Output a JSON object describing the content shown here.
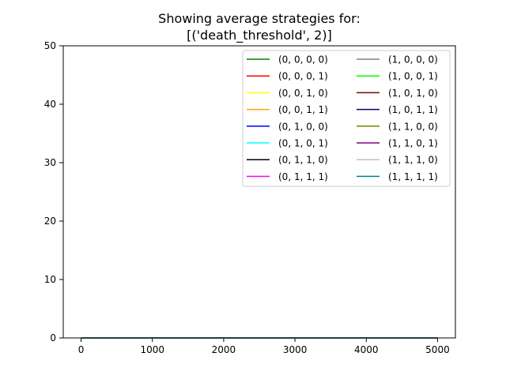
{
  "chart_data": {
    "type": "line",
    "title_lines": [
      "Showing average strategies for:",
      "[('death_threshold', 2)]"
    ],
    "xlabel": "",
    "ylabel": "",
    "xlim": [
      -250,
      5250
    ],
    "ylim": [
      0,
      50
    ],
    "xticks": [
      0,
      1000,
      2000,
      3000,
      4000,
      5000
    ],
    "yticks": [
      0,
      10,
      20,
      30,
      40,
      50
    ],
    "grid": false,
    "legend_placement": "upper-right",
    "legend_columns": 2,
    "x": [
      0,
      5000
    ],
    "series": [
      {
        "name": "(0, 0, 0, 0)",
        "color": "#008000",
        "values": [
          0,
          0
        ]
      },
      {
        "name": "(0, 0, 0, 1)",
        "color": "#ff0000",
        "values": [
          0,
          0
        ]
      },
      {
        "name": "(0, 0, 1, 0)",
        "color": "#ffff00",
        "values": [
          0,
          0
        ]
      },
      {
        "name": "(0, 0, 1, 1)",
        "color": "#ffa500",
        "values": [
          0,
          0
        ]
      },
      {
        "name": "(0, 1, 0, 0)",
        "color": "#0000ff",
        "values": [
          0,
          0
        ]
      },
      {
        "name": "(0, 1, 0, 1)",
        "color": "#00ffff",
        "values": [
          0,
          0
        ]
      },
      {
        "name": "(0, 1, 1, 0)",
        "color": "#000000",
        "values": [
          0,
          0
        ]
      },
      {
        "name": "(0, 1, 1, 1)",
        "color": "#ff00ff",
        "values": [
          0,
          0
        ]
      },
      {
        "name": "(1, 0, 0, 0)",
        "color": "#808080",
        "values": [
          0,
          0
        ]
      },
      {
        "name": "(1, 0, 0, 1)",
        "color": "#00ff00",
        "values": [
          0,
          0
        ]
      },
      {
        "name": "(1, 0, 1, 0)",
        "color": "#800000",
        "values": [
          0,
          0
        ]
      },
      {
        "name": "(1, 0, 1, 1)",
        "color": "#000080",
        "values": [
          0,
          0
        ]
      },
      {
        "name": "(1, 1, 0, 0)",
        "color": "#808000",
        "values": [
          0,
          0
        ]
      },
      {
        "name": "(1, 1, 0, 1)",
        "color": "#800080",
        "values": [
          0,
          0
        ]
      },
      {
        "name": "(1, 1, 1, 0)",
        "color": "#c0c0c0",
        "values": [
          0,
          0
        ]
      },
      {
        "name": "(1, 1, 1, 1)",
        "color": "#008080",
        "values": [
          0,
          0
        ]
      }
    ]
  }
}
